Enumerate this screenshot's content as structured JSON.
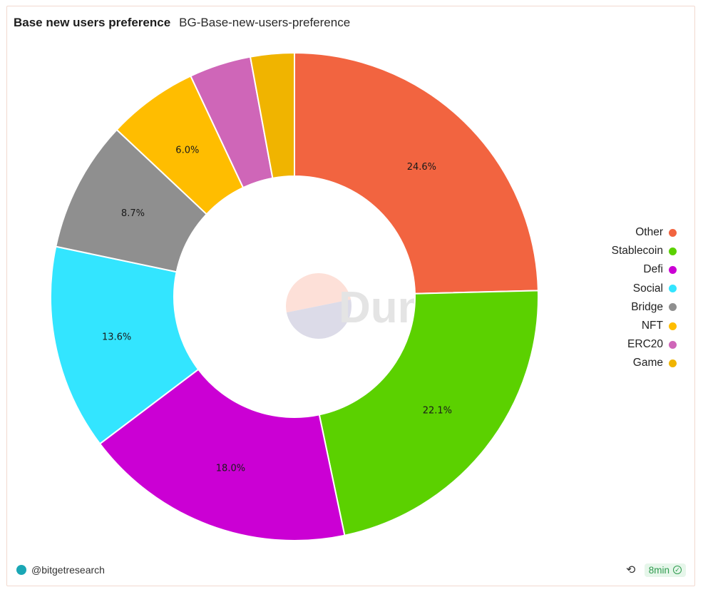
{
  "header": {
    "title": "Base new users preference",
    "subtitle": "BG-Base-new-users-preference"
  },
  "chart_data": {
    "type": "pie",
    "donut": true,
    "title": "Base new users preference",
    "series": [
      {
        "name": "Other",
        "value": 24.6,
        "label": "24.6%",
        "color": "#f26440"
      },
      {
        "name": "Stablecoin",
        "value": 22.1,
        "label": "22.1%",
        "color": "#5bd100"
      },
      {
        "name": "Defi",
        "value": 18.0,
        "label": "18.0%",
        "color": "#cb00d4"
      },
      {
        "name": "Social",
        "value": 13.6,
        "label": "13.6%",
        "color": "#33e5ff"
      },
      {
        "name": "Bridge",
        "value": 8.7,
        "label": "8.7%",
        "color": "#8f8f8f"
      },
      {
        "name": "NFT",
        "value": 6.0,
        "label": "6.0%",
        "color": "#ffbd00"
      },
      {
        "name": "ERC20",
        "value": 4.1,
        "label": "",
        "color": "#cf66b8"
      },
      {
        "name": "Game",
        "value": 2.9,
        "label": "",
        "color": "#f0b400"
      }
    ],
    "legend_position": "right"
  },
  "watermark": {
    "text": "Dune",
    "logo_colors": [
      "#fde0d8",
      "#dcdbe8"
    ]
  },
  "footer": {
    "author": "@bitgetresearch",
    "refresh_icon": "refresh-icon",
    "freshness": "8min",
    "status_icon": "check-circle-icon"
  }
}
